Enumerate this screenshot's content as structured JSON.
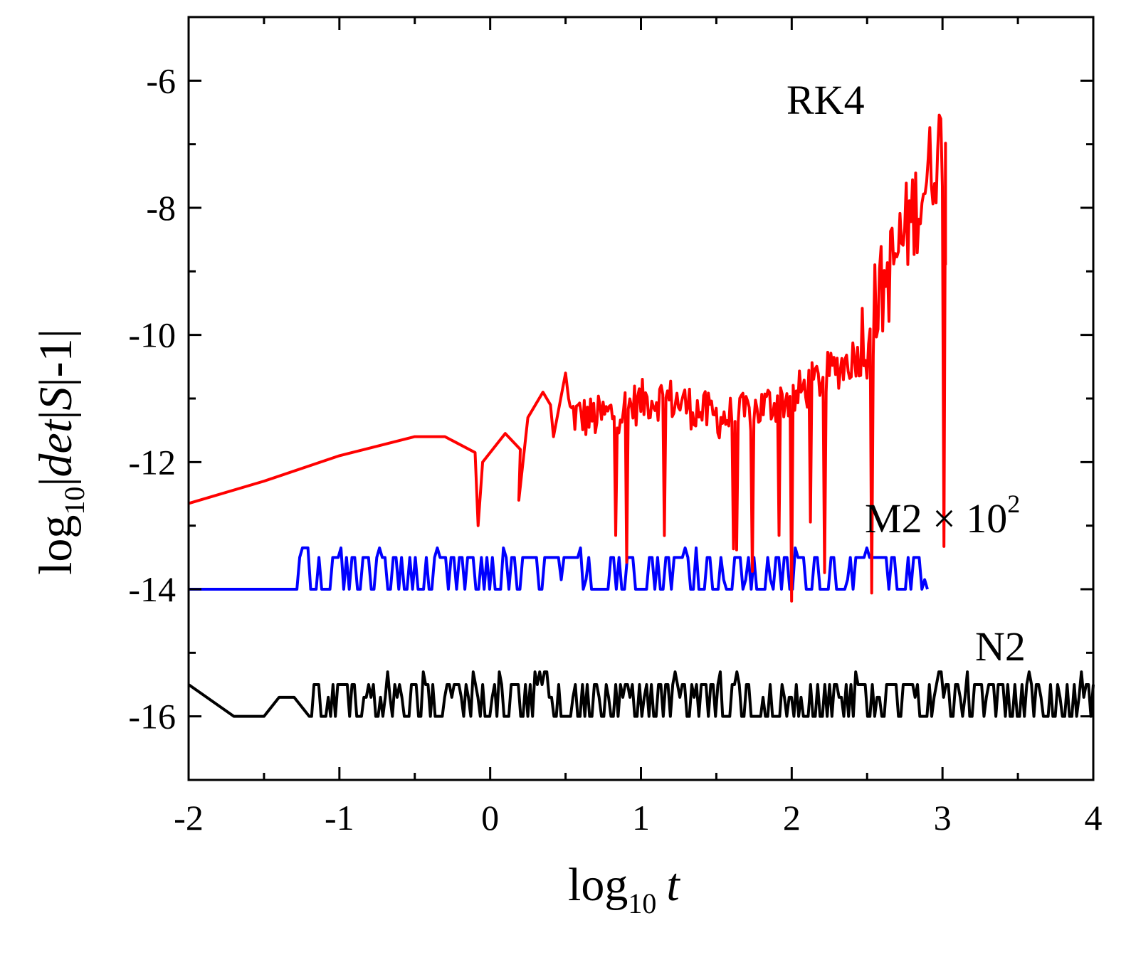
{
  "chart_data": {
    "type": "line",
    "title": "",
    "xlabel": {
      "main": "log",
      "sub": "10",
      "var": "t"
    },
    "ylabel": {
      "main": "log",
      "sub": "10",
      "rest": "|",
      "det": "det",
      "mid": "|",
      "S": "S",
      "end": "|-1|"
    },
    "xlim": [
      -2,
      4
    ],
    "ylim": [
      -17,
      -5
    ],
    "x_ticks": [
      -2,
      -1,
      0,
      1,
      2,
      3,
      4
    ],
    "x_tick_labels": [
      "-2",
      "-1",
      "0",
      "1",
      "2",
      "3",
      "4"
    ],
    "y_ticks": [
      -16,
      -14,
      -12,
      -10,
      -8,
      -6
    ],
    "y_tick_labels": [
      "-16",
      "-14",
      "-12",
      "-10",
      "-8",
      "-6"
    ],
    "grid": false,
    "series": [
      {
        "name": "RK4",
        "label": "RK4",
        "color": "#ff0000",
        "anchors": [
          [
            -2,
            -12.65
          ],
          [
            -1.5,
            -12.3
          ],
          [
            -1.0,
            -11.9
          ],
          [
            -0.5,
            -11.6
          ],
          [
            -0.3,
            -11.6
          ],
          [
            -0.1,
            -11.85
          ],
          [
            -0.08,
            -13.0
          ],
          [
            -0.05,
            -12.0
          ],
          [
            0.1,
            -11.55
          ],
          [
            0.2,
            -11.8
          ],
          [
            0.19,
            -12.6
          ],
          [
            0.25,
            -11.3
          ],
          [
            0.35,
            -10.9
          ],
          [
            0.4,
            -11.1
          ],
          [
            0.42,
            -11.6
          ],
          [
            0.5,
            -10.6
          ],
          [
            0.52,
            -11.0
          ]
        ],
        "noise_range": [
          0.52,
          3.02
        ],
        "label_pos": [
          2.3,
          -6.25
        ]
      },
      {
        "name": "M2 × 10^2",
        "label_main": "M2 × 10",
        "label_sup": "2",
        "color": "#0000ff",
        "flat": [
          [
            -2,
            -14
          ],
          [
            -1.3,
            -14
          ]
        ],
        "noise_range": [
          -1.3,
          2.9
        ],
        "levels": [
          -14,
          -13.5
        ],
        "label_pos": [
          2.5,
          -13.05
        ]
      },
      {
        "name": "N2",
        "label": "N2",
        "color": "#000000",
        "anchors": [
          [
            -2,
            -15.5
          ],
          [
            -1.7,
            -16
          ],
          [
            -1.5,
            -16
          ],
          [
            -1.4,
            -15.7
          ],
          [
            -1.3,
            -15.7
          ],
          [
            -1.2,
            -16
          ]
        ],
        "noise_range": [
          -1.2,
          4
        ],
        "levels": [
          -16,
          -15.5
        ],
        "label_pos": [
          3.45,
          -15.1
        ]
      }
    ]
  }
}
